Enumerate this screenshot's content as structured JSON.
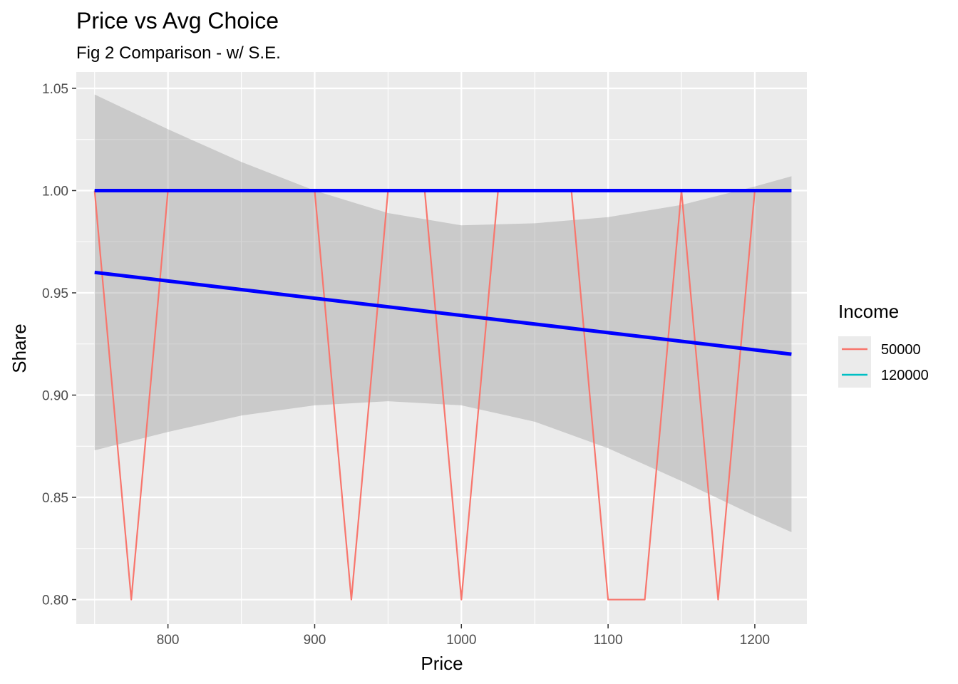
{
  "chart_data": {
    "type": "line",
    "title": "Price vs Avg Choice",
    "subtitle": "Fig 2 Comparison - w/ S.E.",
    "xlabel": "Price",
    "ylabel": "Share",
    "xlim": [
      737.5,
      1235.5
    ],
    "ylim": [
      0.788,
      1.058
    ],
    "x_ticks": [
      800,
      900,
      1000,
      1100,
      1200
    ],
    "x_tick_labels": [
      "800",
      "900",
      "1000",
      "1100",
      "1200"
    ],
    "y_ticks": [
      0.8,
      0.85,
      0.9,
      0.95,
      1.0,
      1.05
    ],
    "y_tick_labels": [
      "0.80",
      "0.85",
      "0.90",
      "0.95",
      "1.00",
      "1.05"
    ],
    "grid": true,
    "legend": {
      "title": "Income",
      "position": "right",
      "entries": [
        {
          "label": "50000",
          "color": "#F8766D"
        },
        {
          "label": "120000",
          "color": "#00BFC4"
        }
      ]
    },
    "series": [
      {
        "name": "50000",
        "color": "#F8766D",
        "x": [
          750,
          775,
          800,
          825,
          850,
          875,
          900,
          925,
          950,
          975,
          1000,
          1025,
          1050,
          1075,
          1100,
          1125,
          1150,
          1175,
          1200,
          1225
        ],
        "y": [
          1.0,
          0.8,
          1.0,
          1.0,
          1.0,
          1.0,
          1.0,
          0.8,
          1.0,
          1.0,
          0.8,
          1.0,
          1.0,
          1.0,
          0.8,
          0.8,
          1.0,
          0.8,
          1.0,
          1.0
        ]
      },
      {
        "name": "120000",
        "color": "#00BFC4",
        "x": [
          750,
          1225
        ],
        "y": [
          1.0,
          1.0
        ]
      }
    ],
    "smooth_lines": [
      {
        "method": "lm",
        "group": "50000",
        "color": "#0000FF",
        "x": [
          750,
          1225
        ],
        "y": [
          0.96,
          0.92
        ],
        "se_band": {
          "color": "#999999",
          "x": [
            750,
            800,
            850,
            900,
            950,
            1000,
            1050,
            1100,
            1150,
            1200,
            1225
          ],
          "lower": [
            0.873,
            0.882,
            0.89,
            0.895,
            0.897,
            0.895,
            0.887,
            0.874,
            0.858,
            0.841,
            0.833
          ],
          "upper": [
            1.047,
            1.03,
            1.014,
            1.0,
            0.989,
            0.983,
            0.984,
            0.987,
            0.993,
            1.002,
            1.007
          ]
        }
      },
      {
        "method": "lm",
        "group": "120000",
        "color": "#0000FF",
        "x": [
          750,
          1225
        ],
        "y": [
          1.0,
          1.0
        ]
      }
    ]
  }
}
